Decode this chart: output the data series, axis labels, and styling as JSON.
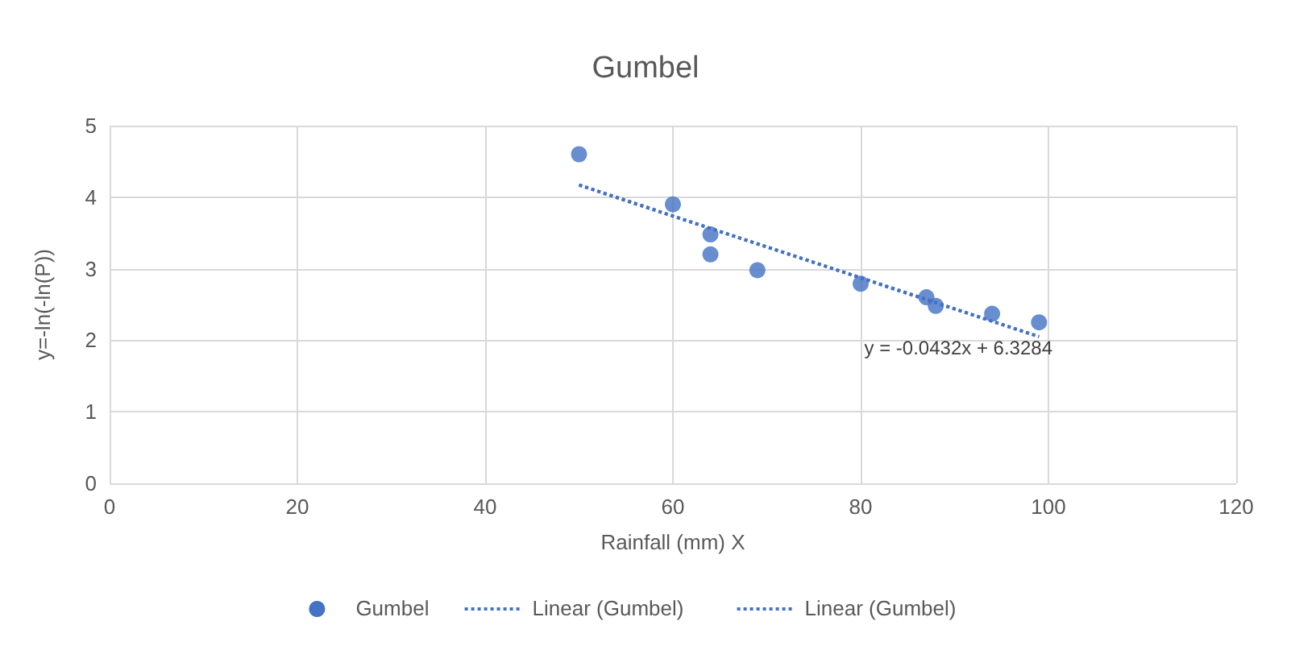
{
  "chart_data": {
    "type": "scatter",
    "title": "Gumbel",
    "xlabel": "Rainfall (mm) X",
    "ylabel": "y=-ln(-ln(P))",
    "xlim": [
      0,
      120
    ],
    "xticks": [
      0,
      20,
      40,
      60,
      80,
      100,
      120
    ],
    "ylim": [
      0,
      5
    ],
    "yticks": [
      0,
      1,
      2,
      3,
      4,
      5
    ],
    "grid": true,
    "legend": "bottom",
    "marker": "circle",
    "series": [
      {
        "name": "Gumbel",
        "color": "#4472c4",
        "x": [
          50,
          60,
          64,
          64,
          69,
          80,
          87,
          88,
          94,
          99
        ],
        "values": [
          4.6,
          3.9,
          3.48,
          3.2,
          2.98,
          2.79,
          2.6,
          2.48,
          2.37,
          2.25
        ]
      },
      {
        "name": "Linear (Gumbel)",
        "type": "line",
        "color": "#4472c4",
        "line_style": "dotted",
        "marker": "none",
        "x": [
          50,
          99
        ],
        "values": [
          4.17,
          2.05
        ]
      },
      {
        "name": "Linear (Gumbel)",
        "type": "line",
        "color": "#4472c4",
        "line_style": "dotted",
        "marker": "none",
        "x": [
          50,
          99
        ],
        "values": [
          4.17,
          2.05
        ]
      }
    ],
    "annotations": [
      "y = -0.0432x + 6.3284"
    ]
  }
}
